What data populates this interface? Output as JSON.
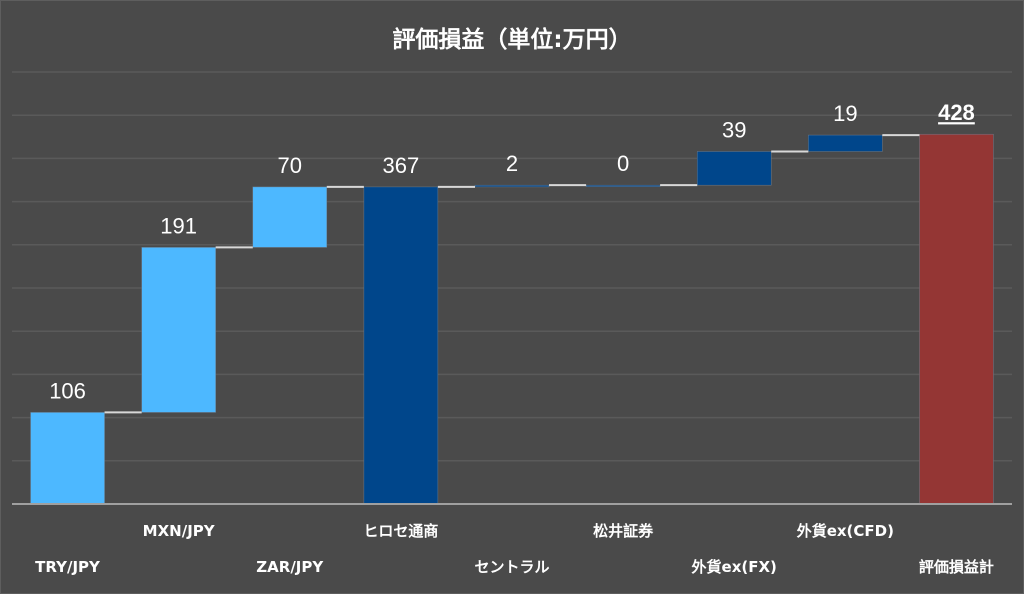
{
  "chart_data": {
    "type": "waterfall",
    "title": "評価損益（単位:万円）",
    "categories": [
      "TRY/JPY",
      "MXN/JPY",
      "ZAR/JPY",
      "ヒロセ通商",
      "セントラル",
      "松井証券",
      "外貨ex(FX)",
      "外貨ex(CFD)",
      "評価損益計"
    ],
    "values": [
      106,
      191,
      70,
      367,
      2,
      0,
      39,
      19,
      428
    ],
    "labels": [
      "106",
      "191",
      "70",
      "367",
      "2",
      "0",
      "39",
      "19",
      "428"
    ],
    "kinds": [
      "step",
      "step",
      "step",
      "subtotal",
      "step",
      "step",
      "step",
      "step",
      "total"
    ],
    "ylim": [
      0,
      500
    ],
    "grid_step": 50,
    "grid": true,
    "legend": "none",
    "colors": {
      "step_light": "#4db8ff",
      "step_dark": "#00468b",
      "subtotal": "#00468b",
      "total": "#943634"
    }
  }
}
